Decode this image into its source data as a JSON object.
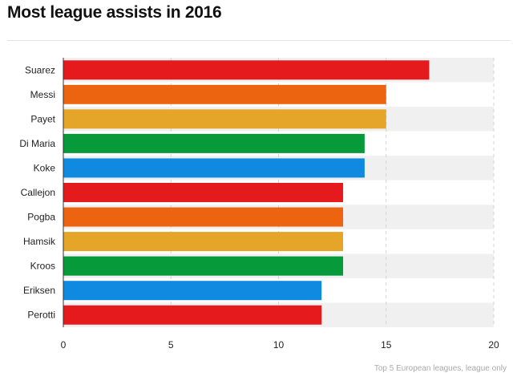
{
  "title": "Most league assists in 2016",
  "note": "Top 5 European leagues, league only",
  "chart_data": {
    "type": "bar",
    "orientation": "horizontal",
    "title": "Most league assists in 2016",
    "xlabel": "",
    "ylabel": "",
    "categories": [
      "Suarez",
      "Messi",
      "Payet",
      "Di Maria",
      "Koke",
      "Callejon",
      "Pogba",
      "Hamsik",
      "Kroos",
      "Eriksen",
      "Perotti"
    ],
    "values": [
      17,
      15,
      15,
      14,
      14,
      13,
      13,
      13,
      13,
      12,
      12
    ],
    "xlim": [
      0,
      20
    ],
    "xticks": [
      0,
      5,
      10,
      15,
      20
    ],
    "grid": "vertical dashed",
    "legend": "none",
    "bar_colors": [
      "#e41a1c",
      "#ec6410",
      "#e4a528",
      "#069a3a",
      "#0f8ae0",
      "#e41a1c",
      "#ec6410",
      "#e4a528",
      "#069a3a",
      "#0f8ae0",
      "#e41a1c"
    ],
    "band_colors": [
      "#f0f0f0",
      "#ffffff"
    ]
  }
}
